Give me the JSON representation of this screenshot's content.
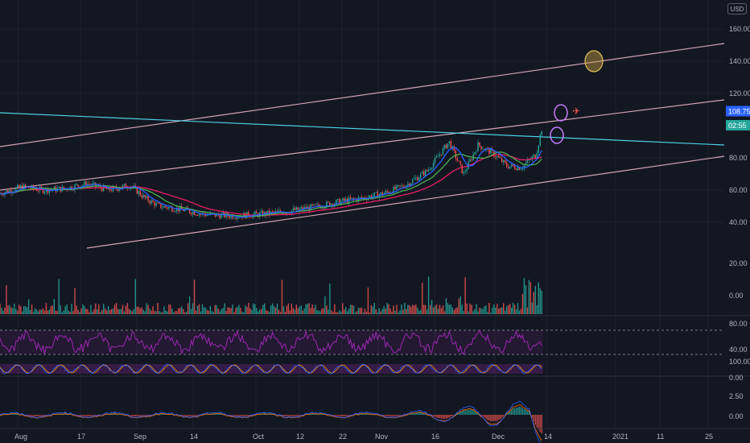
{
  "currency": "USD",
  "colors": {
    "background": "#131722",
    "grid": "#1e222d",
    "up": "#26a69a",
    "down": "#ef5350",
    "trendline": "#d4a5b5",
    "resistance": "#4dd0e1",
    "ma_fast": "#2962ff",
    "ma_slow": "#e91e63",
    "ma_mid": "#4caf50",
    "rsi": "#9c27b0",
    "price_tag_upper": "#2962ff",
    "price_tag_lower": "#26a69a"
  },
  "price_axis": {
    "labels": [
      "160.00",
      "140.00",
      "120.00",
      "80.00",
      "60.00",
      "40.00"
    ],
    "values": [
      160,
      140,
      120,
      80,
      60,
      40
    ],
    "tags": [
      {
        "label": "108.75",
        "value": 108.75
      },
      {
        "label": "02:55",
        "value": 102
      }
    ]
  },
  "volume_axis": {
    "labels": [
      "20.00",
      "0.00"
    ]
  },
  "rsi_axis": {
    "labels": [
      "80.00",
      "40.00"
    ]
  },
  "stoch_axis": {
    "labels": [
      "100.00",
      "0.00"
    ]
  },
  "macd_axis": {
    "labels": [
      "2.50",
      "0.00"
    ]
  },
  "time_axis": {
    "labels": [
      "Aug",
      "17",
      "Sep",
      "14",
      "Oct",
      "12",
      "22",
      "Nov",
      "16",
      "Dec",
      "14",
      "2021",
      "11",
      "25"
    ]
  },
  "chart_data": {
    "type": "candlestick",
    "ylim": [
      28,
      168
    ],
    "trend_channel": {
      "upper": [
        [
          0,
          87
        ],
        [
          100,
          151
        ]
      ],
      "middle": [
        [
          0,
          60
        ],
        [
          100,
          116
        ]
      ],
      "lower": [
        [
          12,
          24
        ],
        [
          100,
          81
        ]
      ]
    },
    "resistance_line": [
      [
        0,
        108
      ],
      [
        100,
        88
      ]
    ],
    "price_path": [
      [
        0,
        58
      ],
      [
        3,
        62
      ],
      [
        6,
        60
      ],
      [
        9,
        61
      ],
      [
        12,
        64
      ],
      [
        15,
        60
      ],
      [
        18,
        63
      ],
      [
        20,
        55
      ],
      [
        22,
        50
      ],
      [
        25,
        48
      ],
      [
        28,
        45
      ],
      [
        32,
        44
      ],
      [
        36,
        45
      ],
      [
        40,
        47
      ],
      [
        44,
        50
      ],
      [
        47,
        53
      ],
      [
        50,
        55
      ],
      [
        53,
        58
      ],
      [
        56,
        63
      ],
      [
        59,
        72
      ],
      [
        62,
        90
      ],
      [
        64,
        70
      ],
      [
        66,
        88
      ],
      [
        68,
        83
      ],
      [
        70,
        75
      ],
      [
        72,
        74
      ],
      [
        74,
        82
      ],
      [
        75,
        102
      ]
    ],
    "annotations": [
      "circle-140",
      "circle-108",
      "circle-94"
    ]
  }
}
